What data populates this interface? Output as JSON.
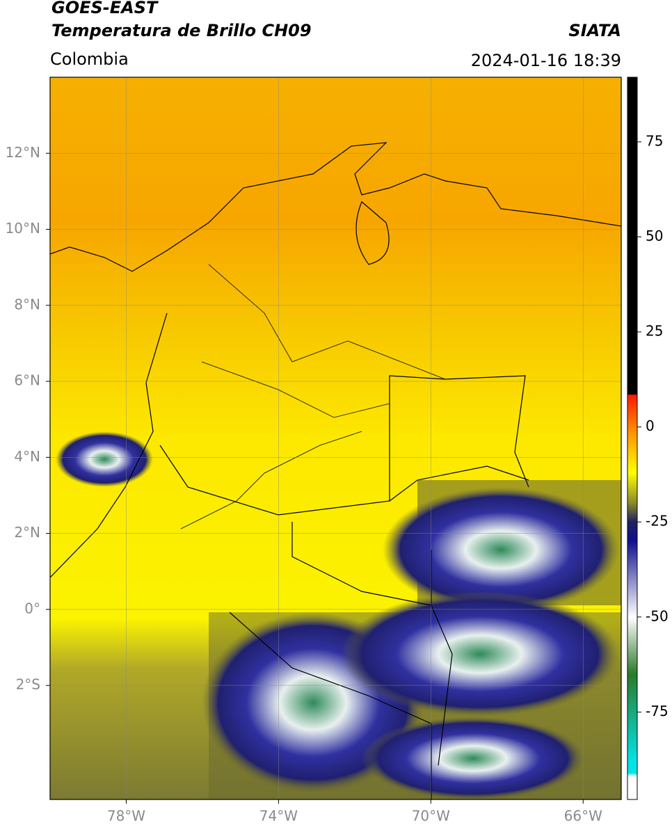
{
  "header": {
    "title": "GOES-EAST",
    "subtitle": "Temperatura de Brillo CH09",
    "source": "SIATA",
    "region": "Colombia",
    "datetime": "2024-01-16 18:39"
  },
  "map": {
    "xlim": [
      -80,
      -65
    ],
    "ylim": [
      -5,
      14
    ],
    "xticks": [
      {
        "value": -78,
        "label": "78°W"
      },
      {
        "value": -74,
        "label": "74°W"
      },
      {
        "value": -70,
        "label": "70°W"
      },
      {
        "value": -66,
        "label": "66°W"
      }
    ],
    "yticks": [
      {
        "value": 12,
        "label": "12°N"
      },
      {
        "value": 10,
        "label": "10°N"
      },
      {
        "value": 8,
        "label": "8°N"
      },
      {
        "value": 6,
        "label": "6°N"
      },
      {
        "value": 4,
        "label": "4°N"
      },
      {
        "value": 2,
        "label": "2°N"
      },
      {
        "value": 0,
        "label": "0°"
      },
      {
        "value": -2,
        "label": "2°S"
      }
    ],
    "grid": true
  },
  "colorbar": {
    "clim": [
      -98,
      92
    ],
    "ticks": [
      75,
      50,
      25,
      0,
      -25,
      -50,
      -75
    ],
    "stops": [
      {
        "value": 92,
        "color": "#000000"
      },
      {
        "value": 8.6,
        "color": "#000000"
      },
      {
        "value": 8.4,
        "color": "#ff1a00"
      },
      {
        "value": -2,
        "color": "#ff9900"
      },
      {
        "value": -12,
        "color": "#ffff00"
      },
      {
        "value": -20,
        "color": "#8a8a2a"
      },
      {
        "value": -25,
        "color": "#202060"
      },
      {
        "value": -30,
        "color": "#101090"
      },
      {
        "value": -50,
        "color": "#ffffff"
      },
      {
        "value": -65,
        "color": "#2a7a2a"
      },
      {
        "value": -88,
        "color": "#00e5e5"
      },
      {
        "value": -91,
        "color": "#00e5e5"
      },
      {
        "value": -92,
        "color": "#ffffff"
      },
      {
        "value": -98,
        "color": "#ffffff"
      }
    ]
  }
}
